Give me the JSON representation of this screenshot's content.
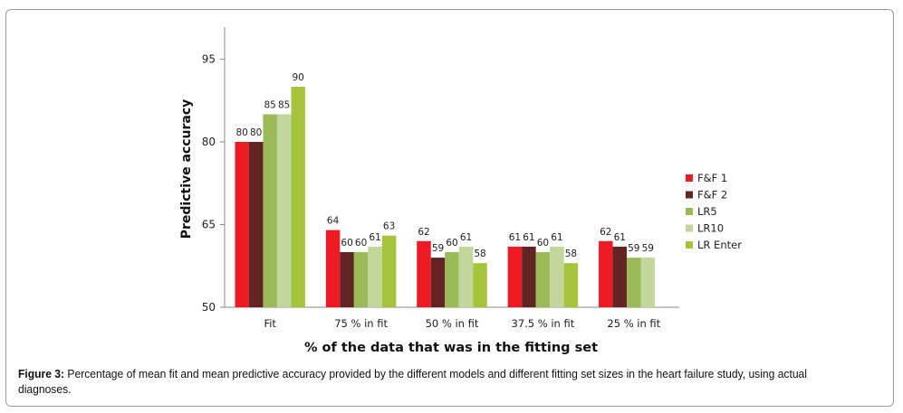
{
  "chart_data": {
    "type": "bar",
    "title": "",
    "xlabel": "% of the data that was in the fitting set",
    "ylabel": "Predictive accuracy",
    "ylim": [
      50,
      100
    ],
    "yticks": [
      50,
      65,
      80,
      95
    ],
    "ytick_labels": [
      "50",
      "65",
      "80",
      "95"
    ],
    "grid": false,
    "legend_position": "right",
    "categories": [
      "Fit",
      "75 % in fit",
      "50 % in fit",
      "37.5 % in fit",
      "25 % in fit"
    ],
    "series": [
      {
        "name": "F&F 1",
        "color": "#ed1c24",
        "values": [
          80,
          64,
          62,
          61,
          62
        ]
      },
      {
        "name": "F&F 2",
        "color": "#632523",
        "values": [
          80,
          60,
          59,
          61,
          61
        ]
      },
      {
        "name": "LR5",
        "color": "#9bbb59",
        "values": [
          85,
          60,
          60,
          60,
          59
        ]
      },
      {
        "name": "LR10",
        "color": "#c3d69b",
        "values": [
          85,
          61,
          61,
          61,
          59
        ]
      },
      {
        "name": "LR Enter",
        "color": "#a5c33b",
        "values": [
          90,
          63,
          58,
          58,
          null
        ]
      }
    ]
  },
  "caption": {
    "label": "Figure 3:",
    "text": " Percentage of mean fit and mean predictive accuracy provided by the different models and different fitting set sizes in the heart failure study, using actual diagnoses."
  }
}
